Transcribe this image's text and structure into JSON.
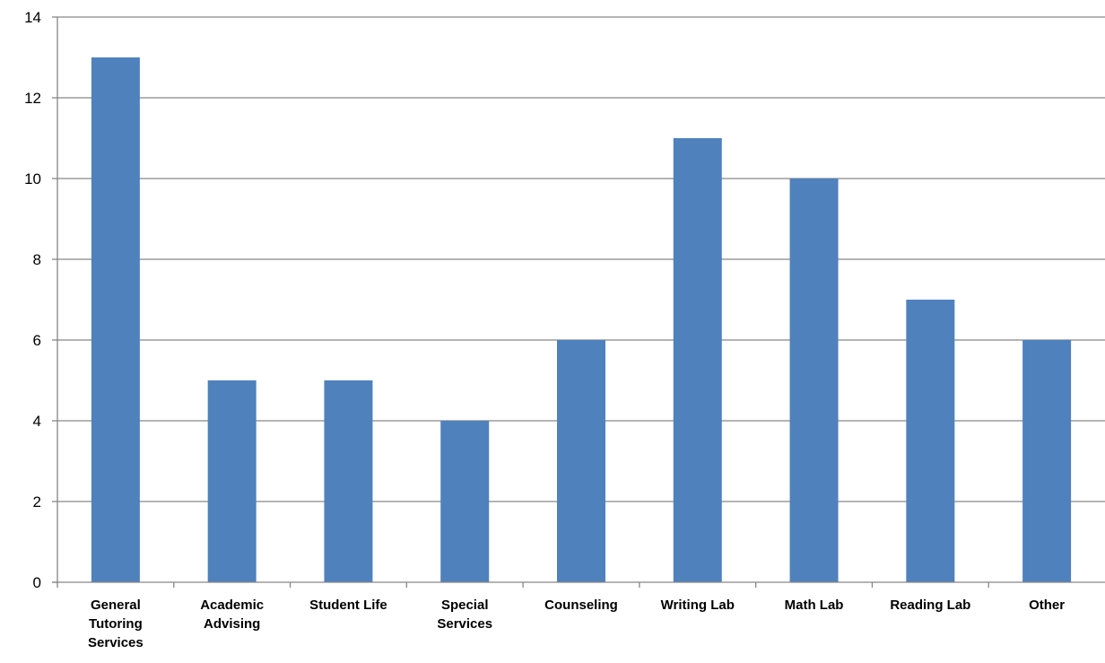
{
  "chart_data": {
    "type": "bar",
    "categories": [
      [
        "General",
        "Tutoring",
        "Services"
      ],
      [
        "Academic",
        "Advising"
      ],
      [
        "Student Life"
      ],
      [
        "Special",
        "Services"
      ],
      [
        "Counseling"
      ],
      [
        "Writing Lab"
      ],
      [
        "Math Lab"
      ],
      [
        "Reading Lab"
      ],
      [
        "Other"
      ]
    ],
    "values": [
      13,
      5,
      5,
      4,
      6,
      11,
      10,
      7,
      6
    ],
    "ylim": [
      0,
      14
    ],
    "yticks": [
      0,
      2,
      4,
      6,
      8,
      10,
      12,
      14
    ],
    "grid": true,
    "legend": "none",
    "title": "",
    "xlabel": "",
    "ylabel": "",
    "colors": {
      "bar": "#4f81bd",
      "grid": "#868686",
      "axis": "#868686"
    }
  }
}
